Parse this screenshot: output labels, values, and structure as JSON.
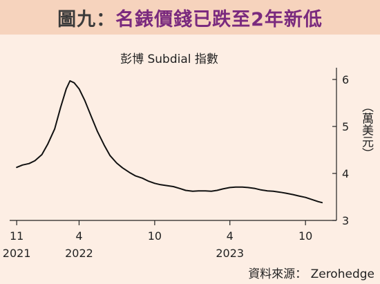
{
  "header": {
    "title_prefix": "圖九：",
    "title_main": "名錶價錢已跌至2年新低"
  },
  "source_text": "資料來源： Zerohedge",
  "chart_data": {
    "type": "line",
    "title": "彭博 Subdial 指數",
    "ylabel": "（萬美元）",
    "ylim": [
      3,
      6.25
    ],
    "yticks": [
      3,
      4,
      5,
      6
    ],
    "x_ticks": [
      {
        "date": "2021-11-01",
        "month": "11",
        "year": "2021"
      },
      {
        "date": "2022-04-01",
        "month": "4",
        "year": "2022"
      },
      {
        "date": "2022-10-01",
        "month": "10",
        "year": ""
      },
      {
        "date": "2023-04-01",
        "month": "4",
        "year": "2023"
      },
      {
        "date": "2023-10-01",
        "month": "10",
        "year": ""
      }
    ],
    "xlim": [
      "2021-10-15",
      "2023-12-15"
    ],
    "grid": false,
    "line_color": "#111111",
    "series": [
      {
        "x": [
          "2021-11-01",
          "2021-11-15",
          "2021-12-01",
          "2021-12-15",
          "2022-01-01",
          "2022-01-15",
          "2022-02-01",
          "2022-02-15",
          "2022-03-01",
          "2022-03-10",
          "2022-03-20",
          "2022-04-01",
          "2022-04-15",
          "2022-05-01",
          "2022-05-15",
          "2022-06-01",
          "2022-06-15",
          "2022-07-01",
          "2022-07-15",
          "2022-08-01",
          "2022-08-15",
          "2022-09-01",
          "2022-09-15",
          "2022-10-01",
          "2022-10-15",
          "2022-11-01",
          "2022-11-15",
          "2022-12-01",
          "2022-12-15",
          "2023-01-01",
          "2023-01-15",
          "2023-02-01",
          "2023-02-15",
          "2023-03-01",
          "2023-03-15",
          "2023-04-01",
          "2023-04-15",
          "2023-05-01",
          "2023-05-15",
          "2023-06-01",
          "2023-06-15",
          "2023-07-01",
          "2023-07-15",
          "2023-08-01",
          "2023-08-15",
          "2023-09-01",
          "2023-09-15",
          "2023-10-01",
          "2023-10-15",
          "2023-11-01",
          "2023-11-10"
        ],
        "values": [
          4.13,
          4.18,
          4.21,
          4.27,
          4.4,
          4.62,
          4.95,
          5.4,
          5.8,
          5.97,
          5.93,
          5.8,
          5.55,
          5.2,
          4.9,
          4.6,
          4.38,
          4.22,
          4.12,
          4.02,
          3.95,
          3.9,
          3.84,
          3.79,
          3.76,
          3.74,
          3.72,
          3.68,
          3.64,
          3.62,
          3.63,
          3.63,
          3.62,
          3.64,
          3.67,
          3.7,
          3.71,
          3.71,
          3.7,
          3.68,
          3.65,
          3.63,
          3.62,
          3.6,
          3.58,
          3.55,
          3.52,
          3.49,
          3.45,
          3.4,
          3.38
        ]
      }
    ]
  }
}
